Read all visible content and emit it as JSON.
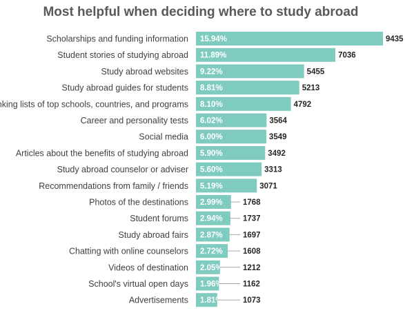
{
  "chart_data": {
    "type": "bar",
    "orientation": "horizontal",
    "title": "Most helpful when deciding where to study abroad",
    "xlabel": "",
    "ylabel": "",
    "grid": false,
    "bar_color": "#7fcbc0",
    "categories": [
      "Scholarships and funding information",
      "Student stories of studying abroad",
      "Study abroad websites",
      "Study abroad guides for students",
      "Ranking lists of top schools, countries, and programs",
      "Career and personality tests",
      "Social media",
      "Articles about the benefits of studying abroad",
      "Study abroad counselor or adviser",
      "Recommendations from family / friends",
      "Photos of the destinations",
      "Student forums",
      "Study abroad fairs",
      "Chatting with online counselors",
      "Videos of destination",
      "School's virtual open days",
      "Advertisements"
    ],
    "values": [
      9435,
      7036,
      5455,
      5213,
      4792,
      3564,
      3549,
      3492,
      3313,
      3071,
      1768,
      1737,
      1697,
      1608,
      1212,
      1162,
      1073
    ],
    "value_labels": [
      "9435",
      "7036",
      "5455",
      "5213",
      "4792",
      "3564",
      "3549",
      "3492",
      "3313",
      "3071",
      "1768",
      "1737",
      "1697",
      "1608",
      "1212",
      "1162",
      "1073"
    ],
    "percent_labels": [
      "15.94%",
      "11.89%",
      "9.22%",
      "8.81%",
      "8.10%",
      "6.02%",
      "6.00%",
      "5.90%",
      "5.60%",
      "5.19%",
      "2.99%",
      "2.94%",
      "2.87%",
      "2.72%",
      "2.05%",
      "1.96%",
      "1.81%"
    ]
  }
}
